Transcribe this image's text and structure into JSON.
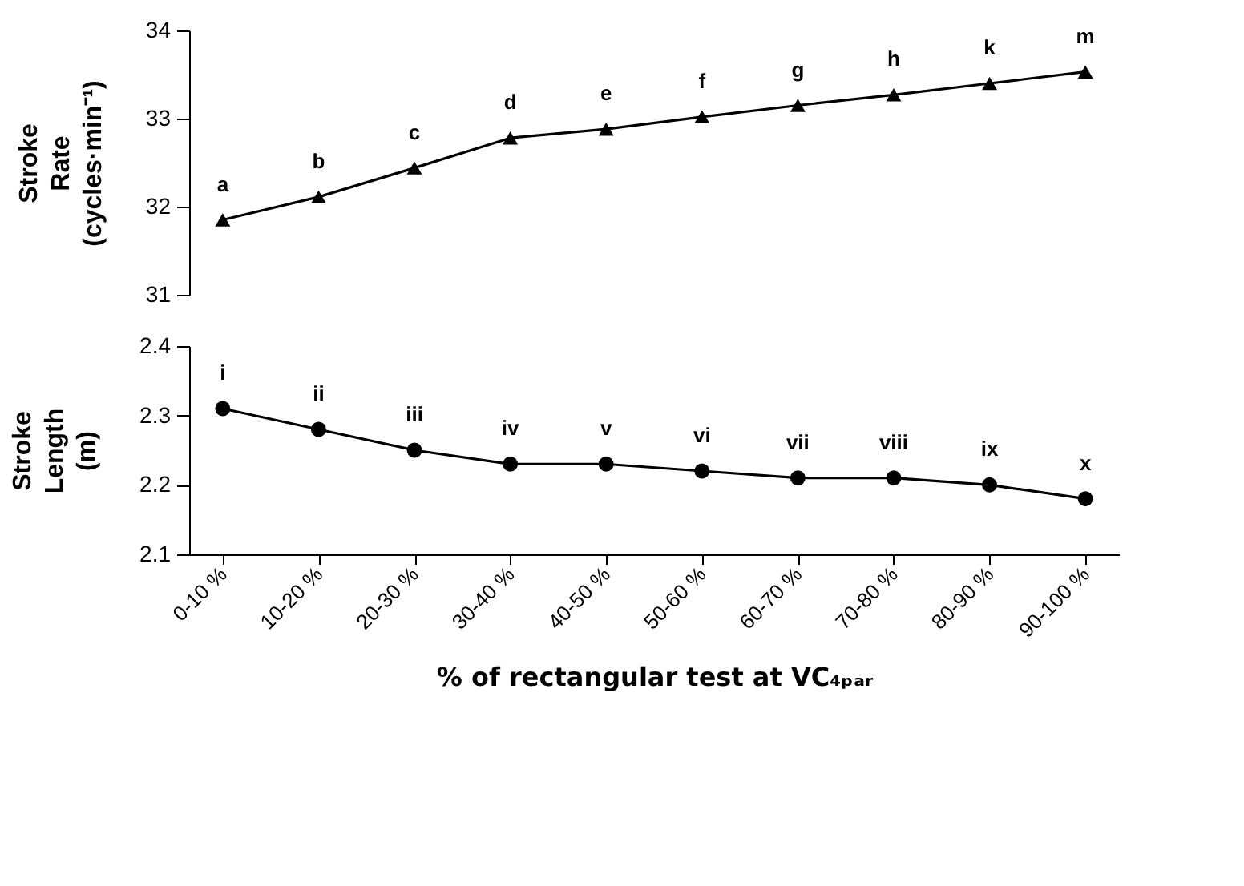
{
  "chart_data": [
    {
      "type": "line",
      "ylabel": "Stroke Rate (cycles·min⁻¹)",
      "categories": [
        "0-10 %",
        "10-20 %",
        "20-30 %",
        "30-40 %",
        "40-50 %",
        "50-60 %",
        "60-70 %",
        "70-80 %",
        "80-90 %",
        "90-100 %"
      ],
      "series": [
        {
          "color": "#000000",
          "values": [
            31.85,
            32.11,
            32.44,
            32.78,
            32.88,
            33.02,
            33.15,
            33.27,
            33.4,
            33.53
          ]
        }
      ],
      "ylim": [
        31,
        34
      ],
      "yticks": [
        31,
        32,
        33,
        34
      ],
      "marker": "triangle",
      "tick_labels": "y",
      "grid": false,
      "legend": false,
      "annotations": [
        {
          "text": "a",
          "x": "0-10 %",
          "y": 31.85
        },
        {
          "text": "b",
          "x": "10-20 %",
          "y": 32.11
        },
        {
          "text": "c",
          "x": "20-30 %",
          "y": 32.44
        },
        {
          "text": "d",
          "x": "30-40 %",
          "y": 32.78
        },
        {
          "text": "e",
          "x": "40-50 %",
          "y": 32.88
        },
        {
          "text": "f",
          "x": "50-60 %",
          "y": 33.02
        },
        {
          "text": "g",
          "x": "60-70 %",
          "y": 33.15
        },
        {
          "text": "h",
          "x": "70-80 %",
          "y": 33.27
        },
        {
          "text": "k",
          "x": "80-90 %",
          "y": 33.4
        },
        {
          "text": "m",
          "x": "90-100 %",
          "y": 33.53
        }
      ]
    },
    {
      "type": "line",
      "ylabel": "Stroke Length (m)",
      "xlabel": "% of rectangular test at VC₄ₚₐᵣ",
      "categories": [
        "0-10 %",
        "10-20 %",
        "20-30 %",
        "30-40 %",
        "40-50 %",
        "50-60 %",
        "60-70 %",
        "70-80 %",
        "80-90 %",
        "90-100 %"
      ],
      "series": [
        {
          "color": "#000000",
          "values": [
            2.31,
            2.28,
            2.25,
            2.23,
            2.23,
            2.22,
            2.21,
            2.21,
            2.2,
            2.18
          ]
        }
      ],
      "ylim": [
        2.1,
        2.4
      ],
      "yticks": [
        2.1,
        2.2,
        2.3,
        2.4
      ],
      "marker": "circle",
      "grid": false,
      "legend": false,
      "annotations": [
        {
          "text": "i",
          "x": "0-10 %",
          "y": 2.31
        },
        {
          "text": "ii",
          "x": "10-20 %",
          "y": 2.28
        },
        {
          "text": "iii",
          "x": "20-30 %",
          "y": 2.25
        },
        {
          "text": "iv",
          "x": "30-40 %",
          "y": 2.23
        },
        {
          "text": "v",
          "x": "40-50 %",
          "y": 2.23
        },
        {
          "text": "vi",
          "x": "50-60 %",
          "y": 2.22
        },
        {
          "text": "vii",
          "x": "60-70 %",
          "y": 2.21
        },
        {
          "text": "viii",
          "x": "70-80 %",
          "y": 2.21
        },
        {
          "text": "ix",
          "x": "80-90 %",
          "y": 2.2
        },
        {
          "text": "x",
          "x": "90-100 %",
          "y": 2.18
        }
      ]
    }
  ]
}
